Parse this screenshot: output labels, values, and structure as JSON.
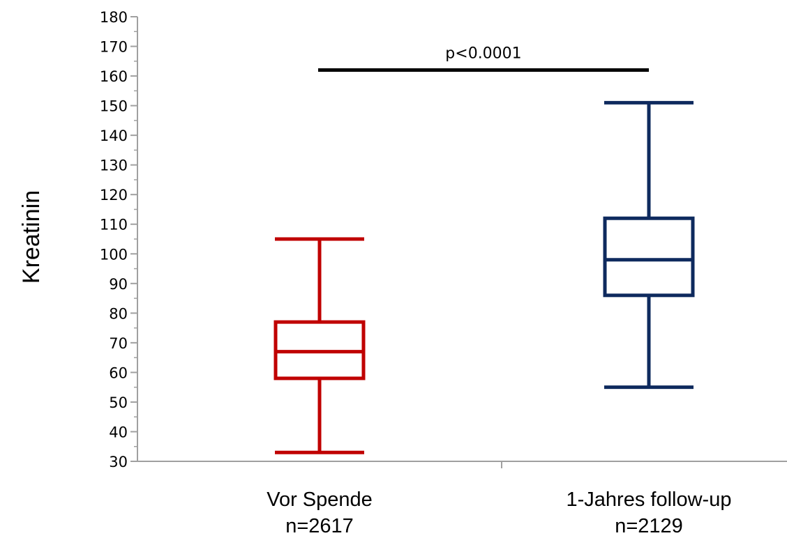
{
  "chart_data": {
    "type": "box",
    "title": "",
    "xlabel": "",
    "ylabel": "Kreatinin",
    "ylim": [
      30,
      180
    ],
    "ytick_step": 10,
    "grid": false,
    "categories": [
      "Vor Spende",
      "1-Jahres follow-up"
    ],
    "category_n": [
      "n=2617",
      "n=2129"
    ],
    "series": [
      {
        "category": "Vor Spende",
        "color": "#c00000",
        "whisker_low": 33,
        "q1": 58,
        "median": 67,
        "q3": 77,
        "whisker_high": 105
      },
      {
        "category": "1-Jahres follow-up",
        "color": "#0e2a5e",
        "whisker_low": 55,
        "q1": 86,
        "median": 98,
        "q3": 112,
        "whisker_high": 151
      }
    ],
    "annotation": {
      "text": "p<0.0001",
      "y": 162
    }
  }
}
